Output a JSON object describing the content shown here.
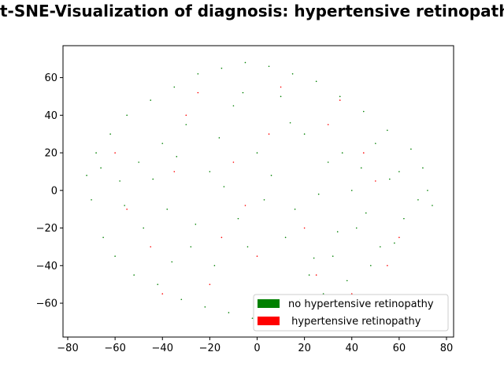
{
  "chart_data": {
    "type": "scatter",
    "title": "t-SNE-Visualization of diagnosis: hypertensive retinopathy",
    "xlabel": "",
    "ylabel": "",
    "xlim": [
      -82,
      83
    ],
    "ylim": [
      -78,
      77
    ],
    "xticks": [
      -80,
      -60,
      -40,
      -20,
      0,
      20,
      40,
      60,
      80
    ],
    "yticks": [
      -60,
      -40,
      -20,
      0,
      20,
      40,
      60
    ],
    "legend_position": "lower-right",
    "series": [
      {
        "name": "no hypertensive retinopathy",
        "color": "#008000",
        "marker_size": 0.8,
        "points": [
          [
            -70,
            -5
          ],
          [
            -72,
            8
          ],
          [
            -68,
            20
          ],
          [
            -65,
            -25
          ],
          [
            -62,
            30
          ],
          [
            -60,
            -35
          ],
          [
            -58,
            5
          ],
          [
            -55,
            40
          ],
          [
            -52,
            -45
          ],
          [
            -50,
            15
          ],
          [
            -48,
            -20
          ],
          [
            -45,
            48
          ],
          [
            -42,
            -50
          ],
          [
            -40,
            25
          ],
          [
            -38,
            -10
          ],
          [
            -35,
            55
          ],
          [
            -32,
            -58
          ],
          [
            -30,
            35
          ],
          [
            -28,
            -30
          ],
          [
            -25,
            62
          ],
          [
            -22,
            -62
          ],
          [
            -20,
            10
          ],
          [
            -18,
            -40
          ],
          [
            -15,
            65
          ],
          [
            -12,
            -65
          ],
          [
            -10,
            45
          ],
          [
            -8,
            -15
          ],
          [
            -5,
            68
          ],
          [
            -2,
            -68
          ],
          [
            0,
            20
          ],
          [
            3,
            -5
          ],
          [
            5,
            66
          ],
          [
            8,
            -62
          ],
          [
            10,
            50
          ],
          [
            12,
            -25
          ],
          [
            15,
            62
          ],
          [
            18,
            -58
          ],
          [
            20,
            30
          ],
          [
            22,
            -45
          ],
          [
            25,
            58
          ],
          [
            28,
            -55
          ],
          [
            30,
            15
          ],
          [
            32,
            -35
          ],
          [
            35,
            50
          ],
          [
            38,
            -48
          ],
          [
            40,
            0
          ],
          [
            42,
            -20
          ],
          [
            45,
            42
          ],
          [
            48,
            -40
          ],
          [
            50,
            25
          ],
          [
            52,
            -30
          ],
          [
            55,
            32
          ],
          [
            58,
            -28
          ],
          [
            60,
            10
          ],
          [
            62,
            -15
          ],
          [
            65,
            22
          ],
          [
            68,
            -5
          ],
          [
            70,
            12
          ],
          [
            72,
            0
          ],
          [
            74,
            -8
          ],
          [
            -66,
            12
          ],
          [
            -56,
            -8
          ],
          [
            -44,
            6
          ],
          [
            -34,
            18
          ],
          [
            -26,
            -18
          ],
          [
            -14,
            2
          ],
          [
            -4,
            -30
          ],
          [
            6,
            8
          ],
          [
            16,
            -10
          ],
          [
            26,
            -2
          ],
          [
            36,
            20
          ],
          [
            46,
            -12
          ],
          [
            56,
            6
          ],
          [
            -36,
            -38
          ],
          [
            -16,
            28
          ],
          [
            14,
            36
          ],
          [
            34,
            -22
          ],
          [
            -6,
            52
          ],
          [
            24,
            -36
          ],
          [
            44,
            12
          ]
        ]
      },
      {
        "name": " hypertensive retinopathy",
        "color": "#ff0000",
        "marker_size": 0.8,
        "points": [
          [
            -60,
            20
          ],
          [
            -45,
            -30
          ],
          [
            -30,
            40
          ],
          [
            -20,
            -50
          ],
          [
            -10,
            15
          ],
          [
            0,
            -35
          ],
          [
            10,
            55
          ],
          [
            20,
            -20
          ],
          [
            30,
            35
          ],
          [
            40,
            -55
          ],
          [
            50,
            5
          ],
          [
            60,
            -25
          ],
          [
            -55,
            -10
          ],
          [
            -35,
            10
          ],
          [
            -15,
            -25
          ],
          [
            5,
            30
          ],
          [
            25,
            -45
          ],
          [
            45,
            20
          ],
          [
            -25,
            52
          ],
          [
            15,
            -60
          ],
          [
            35,
            48
          ],
          [
            -5,
            -8
          ],
          [
            55,
            -40
          ],
          [
            -40,
            -55
          ]
        ]
      }
    ]
  }
}
